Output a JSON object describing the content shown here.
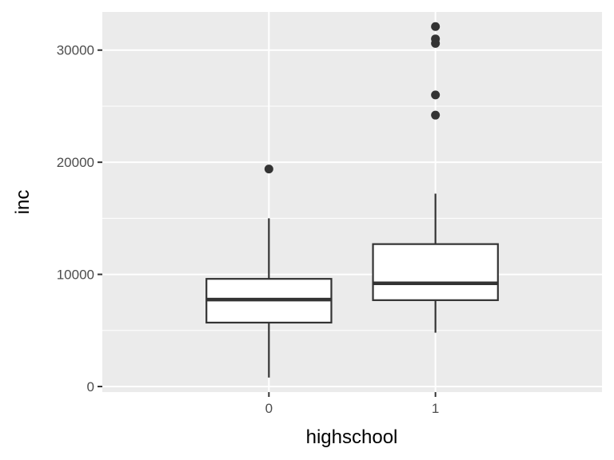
{
  "chart_data": {
    "type": "boxplot",
    "xlabel": "highschool",
    "ylabel": "inc",
    "categories": [
      "0",
      "1"
    ],
    "ylim": [
      -500,
      33400
    ],
    "yticks": [
      0,
      10000,
      20000,
      30000
    ],
    "ytick_labels": [
      "0",
      "10000",
      "20000",
      "30000"
    ],
    "grid": true,
    "colors": {
      "panel": "#ebebeb",
      "grid": "#ffffff",
      "box_fill": "#ffffff",
      "line": "#333333",
      "tick_text": "#4d4d4d"
    },
    "boxes": [
      {
        "category": "0",
        "whisker_low": 800,
        "q1": 5700,
        "median": 7750,
        "q3": 9600,
        "whisker_high": 15000,
        "outliers": [
          19400
        ]
      },
      {
        "category": "1",
        "whisker_low": 4800,
        "q1": 7700,
        "median": 9200,
        "q3": 12700,
        "whisker_high": 17200,
        "outliers": [
          24200,
          26000,
          30600,
          31000,
          32100
        ]
      }
    ]
  }
}
